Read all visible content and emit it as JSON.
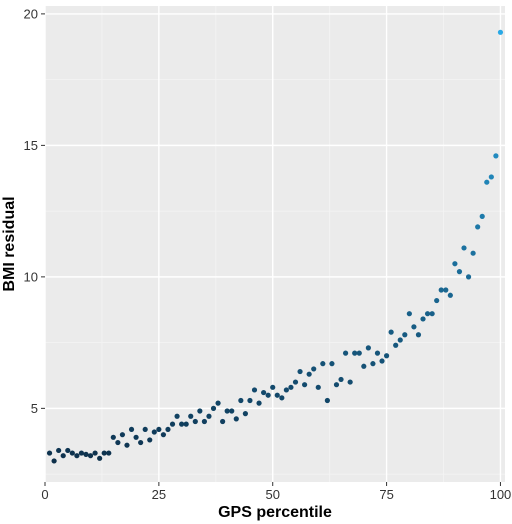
{
  "chart_data": {
    "type": "scatter",
    "title": "",
    "xlabel": "GPS percentile",
    "ylabel": "BMI residual",
    "xlim": [
      0,
      101
    ],
    "ylim": [
      2.2,
      20.3
    ],
    "x_ticks": [
      0,
      25,
      50,
      75,
      100
    ],
    "y_ticks": [
      5,
      10,
      15,
      20
    ],
    "x_tick_labels": [
      "0",
      "25",
      "50",
      "75",
      "100"
    ],
    "y_tick_labels": [
      "5",
      "10",
      "15",
      "20"
    ],
    "grid": true,
    "legend": "none",
    "color_scale": {
      "low_value": 3.0,
      "high_value": 19.3,
      "low_color": "#0d2f4a",
      "high_color": "#29a9e6"
    },
    "colors": {
      "panel_background": "#ebebeb",
      "grid_major": "#ffffff",
      "grid_minor": "#f4f4f4",
      "tick_color": "#333333"
    },
    "points": [
      {
        "x": 1,
        "y": 3.3
      },
      {
        "x": 2,
        "y": 3.0
      },
      {
        "x": 3,
        "y": 3.4
      },
      {
        "x": 4,
        "y": 3.2
      },
      {
        "x": 5,
        "y": 3.4
      },
      {
        "x": 6,
        "y": 3.3
      },
      {
        "x": 7,
        "y": 3.2
      },
      {
        "x": 8,
        "y": 3.3
      },
      {
        "x": 9,
        "y": 3.25
      },
      {
        "x": 10,
        "y": 3.2
      },
      {
        "x": 11,
        "y": 3.3
      },
      {
        "x": 12,
        "y": 3.1
      },
      {
        "x": 13,
        "y": 3.3
      },
      {
        "x": 14,
        "y": 3.3
      },
      {
        "x": 15,
        "y": 3.9
      },
      {
        "x": 16,
        "y": 3.7
      },
      {
        "x": 17,
        "y": 4.0
      },
      {
        "x": 18,
        "y": 3.6
      },
      {
        "x": 19,
        "y": 4.2
      },
      {
        "x": 20,
        "y": 3.9
      },
      {
        "x": 21,
        "y": 3.7
      },
      {
        "x": 22,
        "y": 4.2
      },
      {
        "x": 23,
        "y": 3.8
      },
      {
        "x": 24,
        "y": 4.1
      },
      {
        "x": 25,
        "y": 4.2
      },
      {
        "x": 26,
        "y": 4.0
      },
      {
        "x": 27,
        "y": 4.2
      },
      {
        "x": 28,
        "y": 4.4
      },
      {
        "x": 29,
        "y": 4.7
      },
      {
        "x": 30,
        "y": 4.4
      },
      {
        "x": 31,
        "y": 4.4
      },
      {
        "x": 32,
        "y": 4.7
      },
      {
        "x": 33,
        "y": 4.5
      },
      {
        "x": 34,
        "y": 4.9
      },
      {
        "x": 35,
        "y": 4.5
      },
      {
        "x": 36,
        "y": 4.7
      },
      {
        "x": 37,
        "y": 5.0
      },
      {
        "x": 38,
        "y": 5.2
      },
      {
        "x": 39,
        "y": 4.5
      },
      {
        "x": 40,
        "y": 4.9
      },
      {
        "x": 41,
        "y": 4.9
      },
      {
        "x": 42,
        "y": 4.6
      },
      {
        "x": 43,
        "y": 5.3
      },
      {
        "x": 44,
        "y": 4.8
      },
      {
        "x": 45,
        "y": 5.3
      },
      {
        "x": 46,
        "y": 5.7
      },
      {
        "x": 47,
        "y": 5.2
      },
      {
        "x": 48,
        "y": 5.6
      },
      {
        "x": 49,
        "y": 5.5
      },
      {
        "x": 50,
        "y": 5.8
      },
      {
        "x": 51,
        "y": 5.5
      },
      {
        "x": 52,
        "y": 5.4
      },
      {
        "x": 53,
        "y": 5.7
      },
      {
        "x": 54,
        "y": 5.8
      },
      {
        "x": 55,
        "y": 6.0
      },
      {
        "x": 56,
        "y": 6.4
      },
      {
        "x": 57,
        "y": 5.9
      },
      {
        "x": 58,
        "y": 6.3
      },
      {
        "x": 59,
        "y": 6.5
      },
      {
        "x": 60,
        "y": 5.8
      },
      {
        "x": 61,
        "y": 6.7
      },
      {
        "x": 62,
        "y": 5.3
      },
      {
        "x": 63,
        "y": 6.7
      },
      {
        "x": 64,
        "y": 5.9
      },
      {
        "x": 65,
        "y": 6.1
      },
      {
        "x": 66,
        "y": 7.1
      },
      {
        "x": 67,
        "y": 6.0
      },
      {
        "x": 68,
        "y": 7.1
      },
      {
        "x": 69,
        "y": 7.1
      },
      {
        "x": 70,
        "y": 6.6
      },
      {
        "x": 71,
        "y": 7.3
      },
      {
        "x": 72,
        "y": 6.7
      },
      {
        "x": 73,
        "y": 7.1
      },
      {
        "x": 74,
        "y": 6.8
      },
      {
        "x": 75,
        "y": 7.0
      },
      {
        "x": 76,
        "y": 7.9
      },
      {
        "x": 77,
        "y": 7.4
      },
      {
        "x": 78,
        "y": 7.6
      },
      {
        "x": 79,
        "y": 7.8
      },
      {
        "x": 80,
        "y": 8.6
      },
      {
        "x": 81,
        "y": 8.1
      },
      {
        "x": 82,
        "y": 7.8
      },
      {
        "x": 83,
        "y": 8.4
      },
      {
        "x": 84,
        "y": 8.6
      },
      {
        "x": 85,
        "y": 8.6
      },
      {
        "x": 86,
        "y": 9.1
      },
      {
        "x": 87,
        "y": 9.5
      },
      {
        "x": 88,
        "y": 9.5
      },
      {
        "x": 89,
        "y": 9.3
      },
      {
        "x": 90,
        "y": 10.5
      },
      {
        "x": 91,
        "y": 10.2
      },
      {
        "x": 92,
        "y": 11.1
      },
      {
        "x": 93,
        "y": 10.0
      },
      {
        "x": 94,
        "y": 10.9
      },
      {
        "x": 95,
        "y": 11.9
      },
      {
        "x": 96,
        "y": 12.3
      },
      {
        "x": 97,
        "y": 13.6
      },
      {
        "x": 98,
        "y": 13.8
      },
      {
        "x": 99,
        "y": 14.6
      },
      {
        "x": 100,
        "y": 19.3
      }
    ]
  }
}
